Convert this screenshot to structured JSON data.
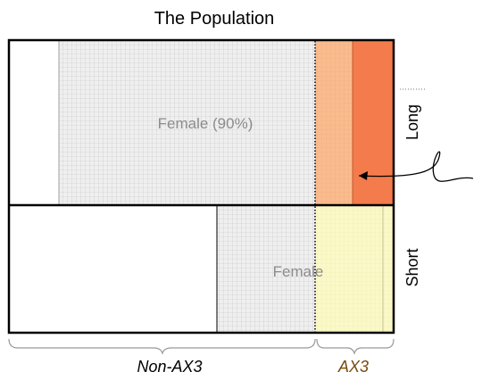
{
  "title": "The Population",
  "regions": {
    "long_female": "Female (90%)",
    "short_female": "Female"
  },
  "side_labels": {
    "long": "Long",
    "short": "Short"
  },
  "bottom_labels": {
    "non_ax3": "Non-AX3",
    "ax3": "AX3"
  },
  "colors": {
    "outline": "#000000",
    "grid_fill": "#efefef",
    "grid_line": "#c4c4c4",
    "region_text": "#8c8c8c",
    "ax3_long_light": "#f9bc8f",
    "ax3_long_dark": "#f47b4b",
    "ax3_short": "#fbf9c8",
    "ax3_label": "#7a4a0c"
  }
}
